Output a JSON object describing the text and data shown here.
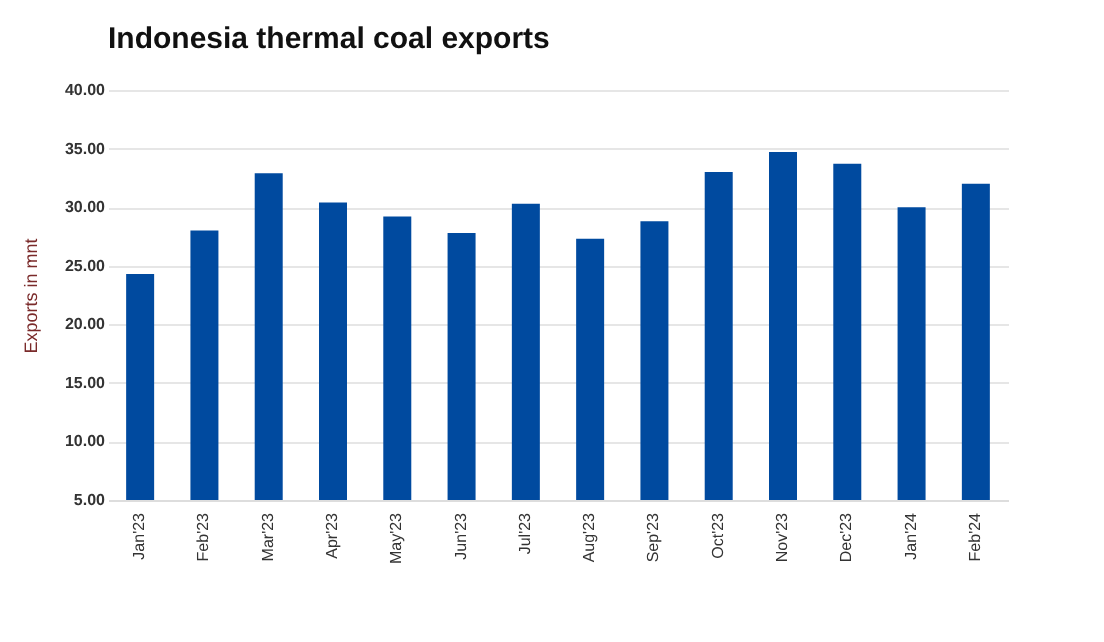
{
  "chart_data": {
    "type": "bar",
    "title": "Indonesia thermal coal exports",
    "ylabel": "Exports in mnt",
    "categories": [
      "Jan'23",
      "Feb'23",
      "Mar'23",
      "Apr'23",
      "May'23",
      "Jun'23",
      "Jul'23",
      "Aug'23",
      "Sep'23",
      "Oct'23",
      "Nov'23",
      "Dec'23",
      "Jan'24",
      "Feb'24"
    ],
    "values": [
      24.3,
      28.0,
      32.9,
      30.4,
      29.2,
      27.8,
      30.3,
      27.3,
      28.8,
      33.0,
      34.7,
      33.7,
      30.0,
      32.0
    ],
    "color": "#004a9f",
    "ylim": [
      5,
      40
    ],
    "yticks": [
      {
        "value": 5,
        "label": "5.00"
      },
      {
        "value": 10,
        "label": "10.00"
      },
      {
        "value": 15,
        "label": "15.00"
      },
      {
        "value": 20,
        "label": "20.00"
      },
      {
        "value": 25,
        "label": "25.00"
      },
      {
        "value": 30,
        "label": "30.00"
      },
      {
        "value": 35,
        "label": "35.00"
      },
      {
        "value": 40,
        "label": "40.00"
      }
    ],
    "grid": "y"
  }
}
